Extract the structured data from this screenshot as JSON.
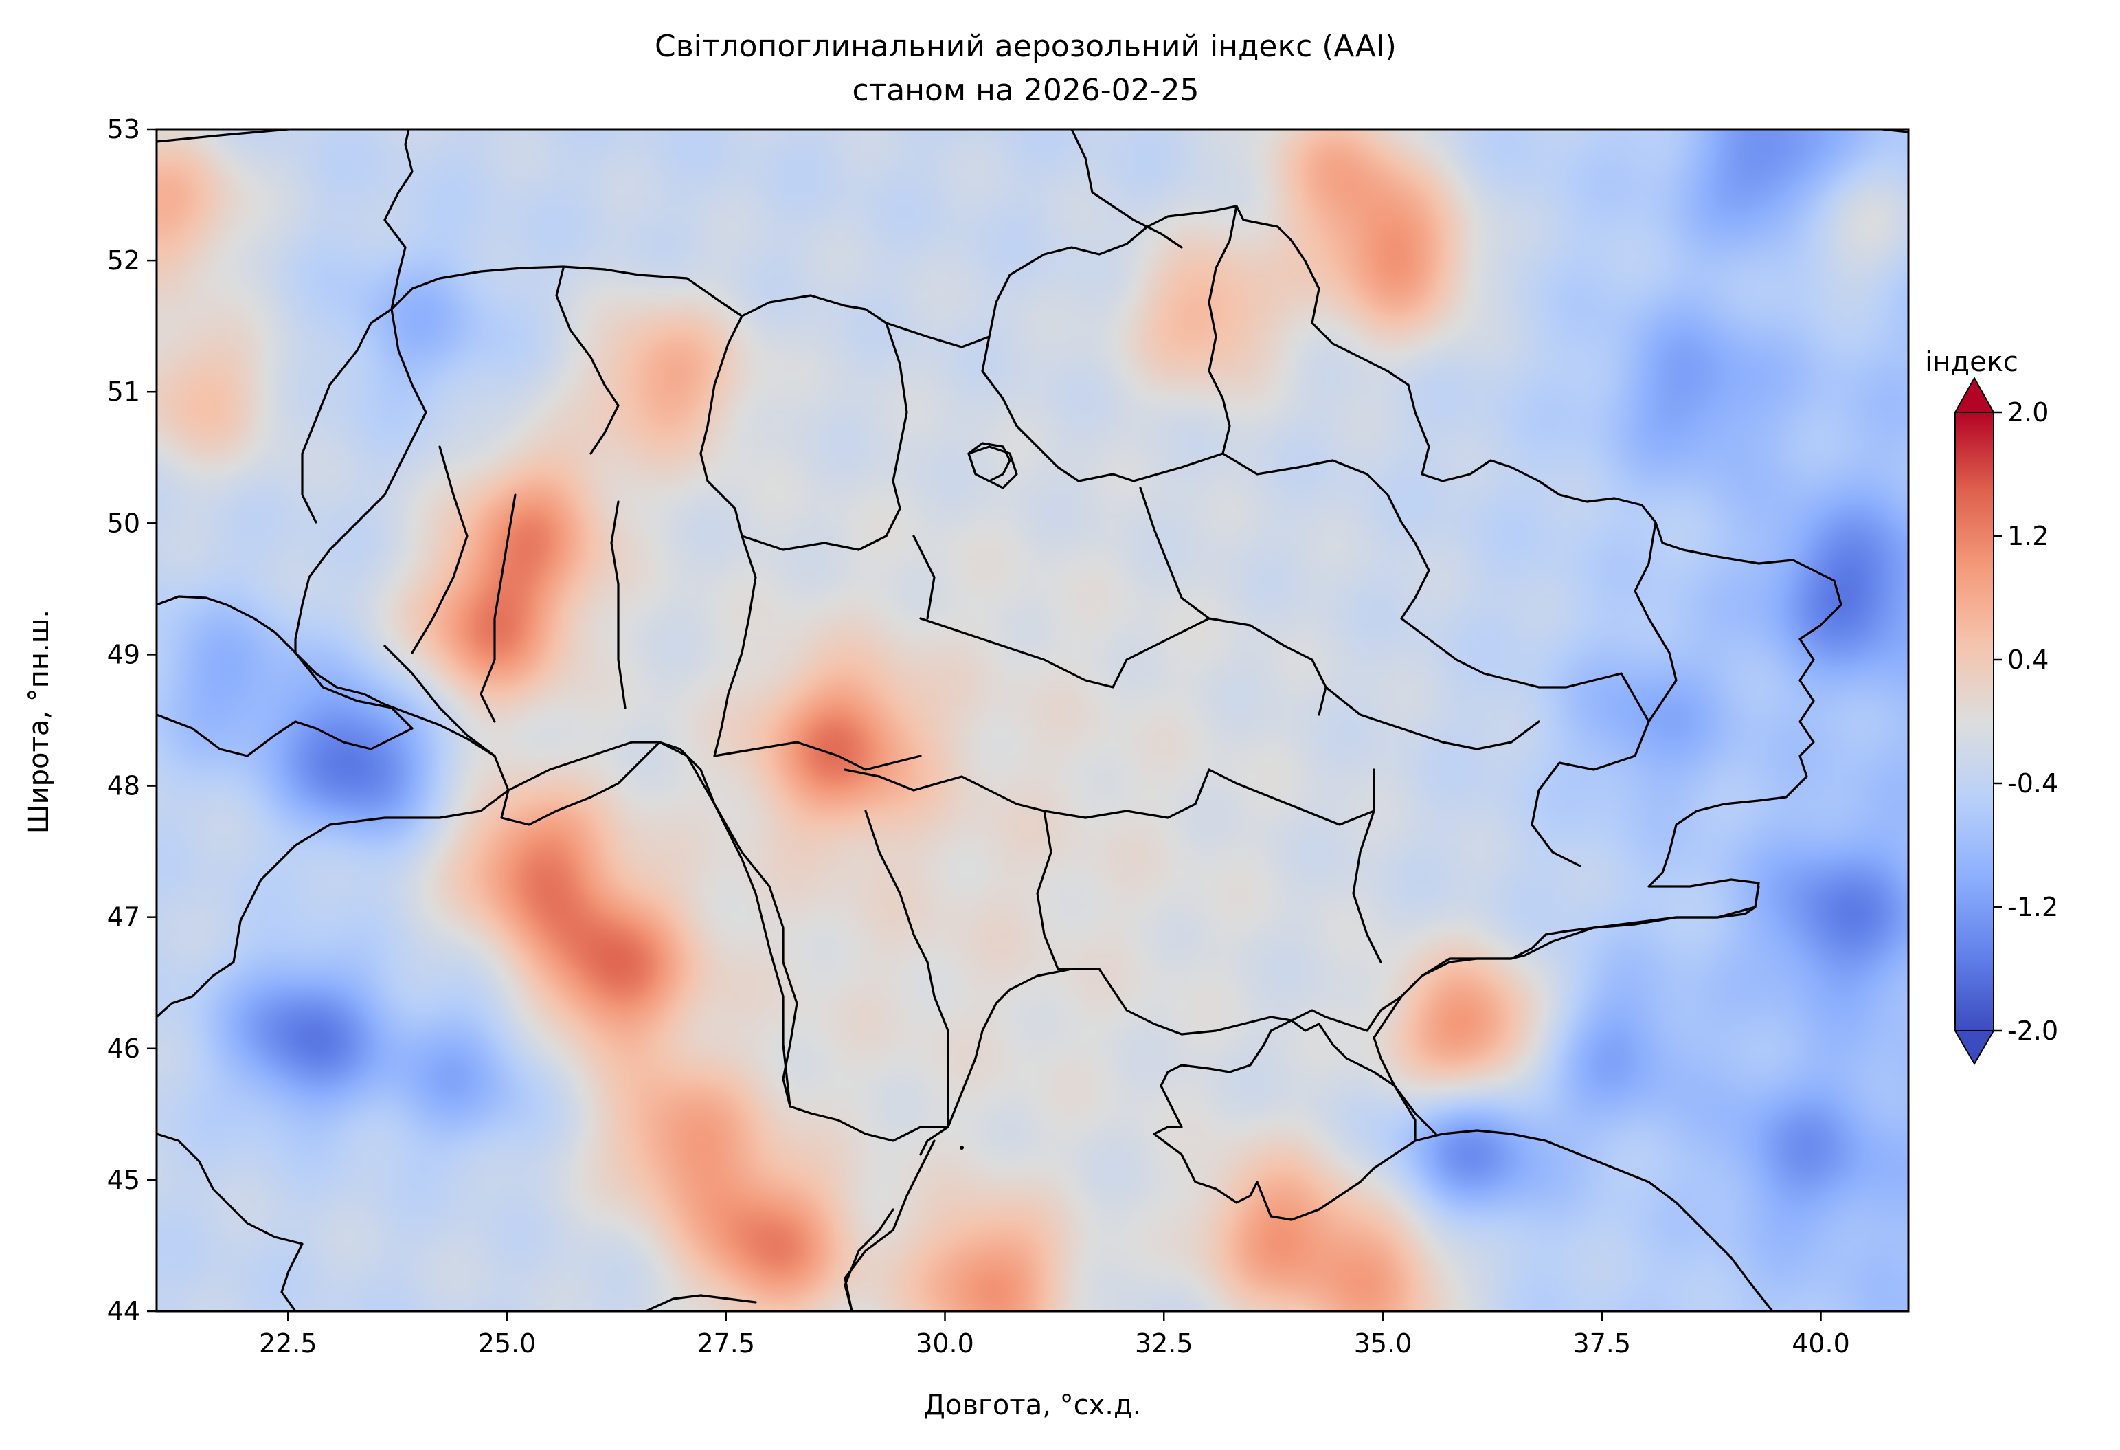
{
  "chart_data": {
    "type": "heatmap",
    "title": "Світлопоглинальний аерозольний індекс (AAI)",
    "subtitle": "станом на 2026-02-25",
    "xlabel": "Довгота, °сх.д.",
    "ylabel": "Широта, °пн.ш.",
    "xlim": [
      21,
      41
    ],
    "ylim": [
      44,
      53
    ],
    "x_ticks": [
      22.5,
      25.0,
      27.5,
      30.0,
      32.5,
      35.0,
      37.5,
      40.0
    ],
    "x_tick_labels": [
      "22.5",
      "25.0",
      "27.5",
      "30.0",
      "32.5",
      "35.0",
      "37.5",
      "40.0"
    ],
    "y_ticks": [
      44,
      45,
      46,
      47,
      48,
      49,
      50,
      51,
      52,
      53
    ],
    "y_tick_labels": [
      "44",
      "45",
      "46",
      "47",
      "48",
      "49",
      "50",
      "51",
      "52",
      "53"
    ],
    "colorbar": {
      "label": "індекс",
      "range": [
        -2.0,
        2.0
      ],
      "ticks": [
        2.0,
        1.2,
        0.4,
        -0.4,
        -1.2,
        -2.0
      ],
      "tick_labels": [
        "2.0",
        "1.2",
        "0.4",
        "-0.4",
        "-1.2",
        "-2.0"
      ],
      "colormap": "coolwarm",
      "extend": "both",
      "low_color": "#3b4cc0",
      "mid_color": "#dddddd",
      "high_color": "#b40426"
    },
    "grid": false,
    "anomalies": [
      {
        "lon": 28.8,
        "lat": 48.3,
        "value": 0.9
      },
      {
        "lon": 24.8,
        "lat": 49.2,
        "value": 1.0
      },
      {
        "lon": 25.3,
        "lat": 50.0,
        "value": 0.8
      },
      {
        "lon": 26.8,
        "lat": 51.1,
        "value": 0.7
      },
      {
        "lon": 26.2,
        "lat": 46.6,
        "value": 1.1
      },
      {
        "lon": 25.3,
        "lat": 47.4,
        "value": 1.0
      },
      {
        "lon": 28.0,
        "lat": 44.5,
        "value": 1.0
      },
      {
        "lon": 27.0,
        "lat": 45.3,
        "value": 0.7
      },
      {
        "lon": 30.5,
        "lat": 44.2,
        "value": 0.9
      },
      {
        "lon": 33.8,
        "lat": 44.6,
        "value": 0.8
      },
      {
        "lon": 36.0,
        "lat": 46.1,
        "value": 1.2
      },
      {
        "lon": 35.0,
        "lat": 44.2,
        "value": 0.7
      },
      {
        "lon": 35.2,
        "lat": 52.0,
        "value": 0.9
      },
      {
        "lon": 33.0,
        "lat": 51.6,
        "value": 0.6
      },
      {
        "lon": 34.5,
        "lat": 52.7,
        "value": 0.6
      },
      {
        "lon": 21.1,
        "lat": 52.4,
        "value": 0.7
      },
      {
        "lon": 21.5,
        "lat": 51.0,
        "value": 0.5
      },
      {
        "lon": 23.3,
        "lat": 48.2,
        "value": -1.7
      },
      {
        "lon": 22.7,
        "lat": 46.1,
        "value": -1.6
      },
      {
        "lon": 24.5,
        "lat": 45.8,
        "value": -1.1
      },
      {
        "lon": 21.8,
        "lat": 48.8,
        "value": -1.0
      },
      {
        "lon": 36.0,
        "lat": 45.3,
        "value": -1.5
      },
      {
        "lon": 39.5,
        "lat": 52.7,
        "value": -1.3
      },
      {
        "lon": 40.2,
        "lat": 47.0,
        "value": -1.2
      },
      {
        "lon": 40.3,
        "lat": 49.5,
        "value": -1.3
      },
      {
        "lon": 38.5,
        "lat": 51.0,
        "value": -1.0
      },
      {
        "lon": 37.6,
        "lat": 46.0,
        "value": -1.0
      },
      {
        "lon": 39.8,
        "lat": 45.2,
        "value": -1.0
      },
      {
        "lon": 24.0,
        "lat": 51.5,
        "value": -0.9
      },
      {
        "lon": 38.0,
        "lat": 48.5,
        "value": -0.9
      },
      {
        "lon": 40.3,
        "lat": 52.3,
        "value": 0.4
      }
    ],
    "background_value": -0.35
  }
}
